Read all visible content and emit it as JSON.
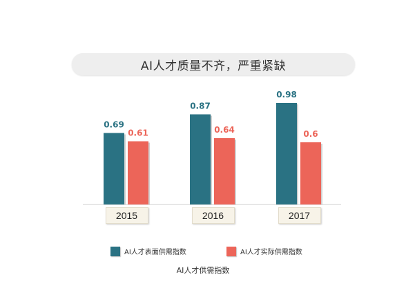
{
  "title": "AI人才质量不齐，严重紧缺",
  "subtitle": "AI人才供需指数",
  "colors": {
    "supply": "#2a7283",
    "actual": "#ec6559"
  },
  "chart_data": {
    "type": "bar",
    "title": "AI人才质量不齐，严重紧缺",
    "xlabel": "",
    "ylabel": "",
    "categories": [
      "2015",
      "2016",
      "2017"
    ],
    "series": [
      {
        "name": "AI人才表面供需指数",
        "values": [
          0.69,
          0.87,
          0.98
        ]
      },
      {
        "name": "AI人才实际供需指数",
        "values": [
          0.61,
          0.64,
          0.6
        ]
      }
    ],
    "ylim": [
      0,
      1.12
    ],
    "grid": false,
    "legend": "bottom"
  }
}
